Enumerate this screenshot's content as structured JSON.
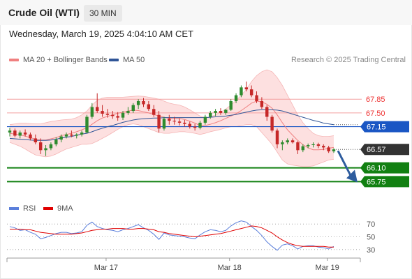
{
  "header": {
    "title": "Crude Oil (WTI)",
    "interval": "30 MIN",
    "datetime": "Wednesday, March 19, 2025 4:04:10 AM CET",
    "credit": "Research © 2025 Trading Central"
  },
  "legend": {
    "items": [
      {
        "label": "MA 20 + Bollinger Bands",
        "color": "#f08080"
      },
      {
        "label": "MA 50",
        "color": "#2f5597"
      }
    ]
  },
  "rsi_legend": {
    "items": [
      {
        "label": "RSI",
        "color": "#5b7fdb"
      },
      {
        "label": "9MA",
        "color": "#e00000"
      }
    ]
  },
  "colors": {
    "up": "#2e8b2e",
    "down": "#c62828",
    "bb_fill": "#fde0e0",
    "ma20": "#f08080",
    "ma50": "#2f5597",
    "resistance": "#f4a0a0",
    "pivot": "#1a56c4",
    "support": "#128012",
    "last": "#333333",
    "rsi": "#5b7fdb",
    "rsi_ma": "#e00000",
    "arrow": "#2e5c9e"
  },
  "chart_data": [
    {
      "type": "candlestick",
      "ylim": [
        65.4,
        68.6
      ],
      "x_labels": [
        "Mar 17",
        "Mar 18",
        "Mar 19"
      ],
      "levels": [
        {
          "label": "67.85",
          "value": 67.85,
          "kind": "resistance"
        },
        {
          "label": "67.50",
          "value": 67.5,
          "kind": "resistance"
        },
        {
          "label": "67.15",
          "value": 67.15,
          "kind": "pivot"
        },
        {
          "label": "66.57",
          "value": 66.57,
          "kind": "last"
        },
        {
          "label": "66.10",
          "value": 66.1,
          "kind": "support"
        },
        {
          "label": "65.75",
          "value": 65.75,
          "kind": "support"
        }
      ],
      "ohlc": [
        [
          67.0,
          67.12,
          66.9,
          67.05
        ],
        [
          67.05,
          67.1,
          66.88,
          66.92
        ],
        [
          66.92,
          67.05,
          66.85,
          67.0
        ],
        [
          67.0,
          67.08,
          66.9,
          66.95
        ],
        [
          66.95,
          67.0,
          66.8,
          66.85
        ],
        [
          66.85,
          66.95,
          66.7,
          66.75
        ],
        [
          66.75,
          66.85,
          66.45,
          66.55
        ],
        [
          66.55,
          66.68,
          66.4,
          66.6
        ],
        [
          66.6,
          66.75,
          66.55,
          66.7
        ],
        [
          66.7,
          66.88,
          66.65,
          66.82
        ],
        [
          66.82,
          66.95,
          66.75,
          66.9
        ],
        [
          66.9,
          67.0,
          66.85,
          66.95
        ],
        [
          66.95,
          67.05,
          66.88,
          66.92
        ],
        [
          66.92,
          66.98,
          66.85,
          66.95
        ],
        [
          66.95,
          67.05,
          66.9,
          67.0
        ],
        [
          67.0,
          67.45,
          66.98,
          67.4
        ],
        [
          67.4,
          67.75,
          67.35,
          67.65
        ],
        [
          67.65,
          68.0,
          67.5,
          67.55
        ],
        [
          67.55,
          67.7,
          67.4,
          67.48
        ],
        [
          67.48,
          67.6,
          67.38,
          67.45
        ],
        [
          67.45,
          67.55,
          67.35,
          67.42
        ],
        [
          67.42,
          67.52,
          67.3,
          67.38
        ],
        [
          67.38,
          67.55,
          67.32,
          67.5
        ],
        [
          67.5,
          67.65,
          67.45,
          67.55
        ],
        [
          67.55,
          67.75,
          67.5,
          67.7
        ],
        [
          67.7,
          67.85,
          67.6,
          67.8
        ],
        [
          67.8,
          67.88,
          67.65,
          67.72
        ],
        [
          67.72,
          67.8,
          67.55,
          67.6
        ],
        [
          67.6,
          67.7,
          67.4,
          67.45
        ],
        [
          67.45,
          67.55,
          67.0,
          67.1
        ],
        [
          67.1,
          67.4,
          67.05,
          67.35
        ],
        [
          67.35,
          67.45,
          67.2,
          67.3
        ],
        [
          67.3,
          67.4,
          67.2,
          67.28
        ],
        [
          67.28,
          67.36,
          67.18,
          67.25
        ],
        [
          67.25,
          67.32,
          67.15,
          67.22
        ],
        [
          67.22,
          67.28,
          67.1,
          67.15
        ],
        [
          67.15,
          67.22,
          67.05,
          67.12
        ],
        [
          67.12,
          67.3,
          67.08,
          67.25
        ],
        [
          67.25,
          67.45,
          67.2,
          67.4
        ],
        [
          67.4,
          67.55,
          67.35,
          67.5
        ],
        [
          67.5,
          67.6,
          67.42,
          67.55
        ],
        [
          67.55,
          67.62,
          67.45,
          67.5
        ],
        [
          67.5,
          67.6,
          67.45,
          67.58
        ],
        [
          67.58,
          67.85,
          67.55,
          67.8
        ],
        [
          67.8,
          68.0,
          67.75,
          67.95
        ],
        [
          67.95,
          68.2,
          67.9,
          68.15
        ],
        [
          68.15,
          68.3,
          68.05,
          68.1
        ],
        [
          68.1,
          68.2,
          67.9,
          67.95
        ],
        [
          67.95,
          68.05,
          67.75,
          67.8
        ],
        [
          67.8,
          67.9,
          67.6,
          67.65
        ],
        [
          67.65,
          67.7,
          67.3,
          67.4
        ],
        [
          67.4,
          67.45,
          67.0,
          67.05
        ],
        [
          67.05,
          67.1,
          66.6,
          66.7
        ],
        [
          66.7,
          66.8,
          66.55,
          66.75
        ],
        [
          66.75,
          66.85,
          66.7,
          66.8
        ],
        [
          66.8,
          66.85,
          66.72,
          66.75
        ],
        [
          66.75,
          66.78,
          66.45,
          66.55
        ],
        [
          66.55,
          66.7,
          66.5,
          66.65
        ],
        [
          66.65,
          66.72,
          66.6,
          66.68
        ],
        [
          66.68,
          66.75,
          66.62,
          66.7
        ],
        [
          66.7,
          66.74,
          66.6,
          66.66
        ],
        [
          66.66,
          66.7,
          66.55,
          66.62
        ],
        [
          66.62,
          66.66,
          66.48,
          66.52
        ],
        [
          66.52,
          66.6,
          66.48,
          66.57
        ]
      ],
      "bb_upper": [
        67.2,
        67.22,
        67.24,
        67.24,
        67.23,
        67.22,
        67.22,
        67.25,
        67.28,
        67.3,
        67.32,
        67.33,
        67.34,
        67.38,
        67.45,
        67.55,
        67.7,
        67.82,
        67.88,
        67.9,
        67.9,
        67.9,
        67.9,
        67.91,
        67.92,
        67.93,
        67.92,
        67.9,
        67.88,
        67.85,
        67.8,
        67.75,
        67.72,
        67.7,
        67.65,
        67.58,
        67.5,
        67.42,
        67.38,
        67.4,
        67.45,
        67.52,
        67.6,
        67.7,
        67.82,
        67.95,
        68.1,
        68.3,
        68.45,
        68.55,
        68.6,
        68.55,
        68.4,
        68.2,
        67.95,
        67.7,
        67.45,
        67.25,
        67.1,
        66.98,
        66.92,
        66.9,
        66.9,
        66.92
      ],
      "bb_lower": [
        66.75,
        66.7,
        66.65,
        66.58,
        66.5,
        66.43,
        66.4,
        66.38,
        66.4,
        66.45,
        66.52,
        66.58,
        66.62,
        66.66,
        66.7,
        66.7,
        66.72,
        66.78,
        66.85,
        66.92,
        67.0,
        67.08,
        67.15,
        67.2,
        67.22,
        67.2,
        67.15,
        67.1,
        67.05,
        67.0,
        66.98,
        66.98,
        67.0,
        67.02,
        67.02,
        67.0,
        66.98,
        66.95,
        66.98,
        67.02,
        67.05,
        67.08,
        67.12,
        67.15,
        67.15,
        67.18,
        67.2,
        67.2,
        67.15,
        67.0,
        66.85,
        66.7,
        66.5,
        66.3,
        66.2,
        66.17,
        66.15,
        66.13,
        66.13,
        66.15,
        66.2,
        66.25,
        66.3,
        66.32
      ],
      "ma20": [
        66.98,
        66.96,
        66.94,
        66.91,
        66.87,
        66.83,
        66.81,
        66.81,
        66.84,
        66.87,
        66.92,
        66.95,
        66.98,
        67.02,
        67.07,
        67.12,
        67.21,
        67.3,
        67.37,
        67.41,
        67.45,
        67.49,
        67.52,
        67.55,
        67.57,
        67.56,
        67.53,
        67.5,
        67.46,
        67.42,
        67.39,
        67.36,
        67.36,
        67.36,
        67.33,
        67.29,
        67.24,
        67.18,
        67.18,
        67.21,
        67.25,
        67.3,
        67.36,
        67.42,
        67.48,
        67.56,
        67.65,
        67.75,
        67.8,
        67.78,
        67.72,
        67.62,
        67.45,
        67.25,
        67.07,
        66.93,
        66.8,
        66.69,
        66.61,
        66.56,
        66.56,
        66.57,
        66.6,
        66.62
      ],
      "ma50": [
        66.85,
        66.84,
        66.83,
        66.82,
        66.81,
        66.8,
        66.8,
        66.8,
        66.81,
        66.83,
        66.86,
        66.88,
        66.9,
        66.93,
        66.96,
        66.98,
        67.02,
        67.07,
        67.11,
        67.15,
        67.18,
        67.22,
        67.26,
        67.29,
        67.32,
        67.34,
        67.35,
        67.36,
        67.37,
        67.37,
        67.38,
        67.38,
        67.38,
        67.38,
        67.38,
        67.38,
        67.38,
        67.38,
        67.38,
        67.39,
        67.4,
        67.41,
        67.42,
        67.44,
        67.46,
        67.49,
        67.52,
        67.55,
        67.57,
        67.58,
        67.58,
        67.58,
        67.57,
        67.55,
        67.51,
        67.47,
        67.43,
        67.39,
        67.35,
        67.31,
        67.28,
        67.24,
        67.22,
        67.2
      ]
    },
    {
      "type": "line",
      "name": "RSI",
      "ylim": [
        20,
        80
      ],
      "ticks": [
        "70",
        "50",
        "30"
      ],
      "tick_values": [
        70,
        50,
        30
      ],
      "rsi": [
        66,
        64,
        60,
        61,
        57,
        54,
        47,
        49,
        52,
        55,
        57,
        57,
        55,
        56,
        58,
        68,
        73,
        66,
        63,
        61,
        60,
        58,
        61,
        63,
        66,
        69,
        64,
        60,
        54,
        46,
        56,
        53,
        52,
        51,
        50,
        48,
        47,
        53,
        58,
        61,
        60,
        58,
        60,
        67,
        72,
        75,
        73,
        66,
        60,
        52,
        42,
        35,
        29,
        37,
        39,
        36,
        31,
        35,
        36,
        36,
        34,
        33,
        31,
        35
      ],
      "rsi_ma": [
        62,
        62,
        62,
        61,
        61,
        59,
        57,
        56,
        55,
        54,
        54,
        54,
        54,
        55,
        56,
        58,
        60,
        61,
        62,
        62,
        63,
        63,
        63,
        62,
        62,
        63,
        63,
        62,
        61,
        58,
        57,
        55,
        54,
        53,
        52,
        51,
        50,
        51,
        52,
        53,
        54,
        55,
        57,
        59,
        61,
        63,
        65,
        67,
        66,
        64,
        60,
        56,
        50,
        45,
        41,
        38,
        36,
        35,
        35,
        35,
        35,
        35,
        34,
        34
      ]
    }
  ]
}
